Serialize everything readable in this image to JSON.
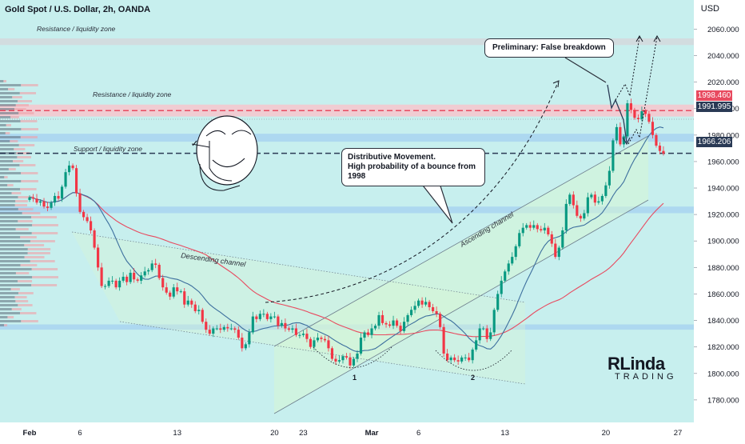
{
  "header": {
    "title": "Gold Spot / U.S. Dollar, 2h, OANDA",
    "currency": "USD"
  },
  "annotations": {
    "resistance_top": "Resistance / liquidity zone",
    "resistance_mid": "Resistance / liquidity zone",
    "support": "Support / liquidity zone",
    "descending_channel": "Descending channel",
    "ascending_channel": "Ascending channel",
    "bottom_1": "1",
    "bottom_2": "2",
    "callout_false_breakdown": "Preliminary: False breakdown",
    "callout_distributive_line1": "Distributive Movement.",
    "callout_distributive_line2": "High probability of a bounce from 1998"
  },
  "logo": {
    "top": "RLinda",
    "bottom": "TRADING"
  },
  "price_tags": [
    {
      "label": "1998.460",
      "color": "#e84a5f"
    },
    {
      "label": "1991.995",
      "color": "#2a3a55"
    },
    {
      "label": "1966.206",
      "color": "#2a3a55"
    }
  ],
  "chart_data": {
    "type": "candlestick",
    "title": "Gold Spot / U.S. Dollar, 2h, OANDA",
    "y_unit": "USD",
    "ylim": [
      1763,
      2082
    ],
    "y_ticks": [
      2060,
      2040,
      2020,
      2000,
      1980,
      1960,
      1940,
      1920,
      1900,
      1880,
      1860,
      1840,
      1820,
      1800,
      1780
    ],
    "y_tick_labels": [
      "2060.000",
      "2040.000",
      "2020.000",
      "2000.000",
      "1980.000",
      "1960.000",
      "1940.000",
      "1920.000",
      "1900.000",
      "1880.000",
      "1860.000",
      "1840.000",
      "1820.000",
      "1800.000",
      "1780.000"
    ],
    "x_ticks": [
      "Feb",
      "6",
      "13",
      "20",
      "23",
      "Mar",
      "6",
      "13",
      "20",
      "27"
    ],
    "x_tick_index": [
      0,
      14,
      41,
      68,
      76,
      95,
      108,
      132,
      160,
      180
    ],
    "candles_count": 185,
    "closes": [
      1933,
      1932,
      1929,
      1930,
      1926,
      1925,
      1929,
      1934,
      1932,
      1941,
      1952,
      1957,
      1955,
      1936,
      1922,
      1918,
      1915,
      1908,
      1895,
      1880,
      1866,
      1866,
      1870,
      1870,
      1865,
      1870,
      1873,
      1869,
      1876,
      1871,
      1870,
      1874,
      1877,
      1878,
      1883,
      1882,
      1872,
      1865,
      1861,
      1858,
      1865,
      1862,
      1862,
      1852,
      1855,
      1852,
      1847,
      1848,
      1839,
      1833,
      1830,
      1834,
      1834,
      1833,
      1835,
      1834,
      1834,
      1833,
      1827,
      1819,
      1822,
      1831,
      1843,
      1841,
      1845,
      1845,
      1841,
      1843,
      1843,
      1836,
      1838,
      1834,
      1833,
      1834,
      1829,
      1829,
      1830,
      1826,
      1820,
      1825,
      1827,
      1826,
      1825,
      1819,
      1811,
      1809,
      1810,
      1813,
      1812,
      1806,
      1811,
      1815,
      1827,
      1831,
      1829,
      1834,
      1836,
      1844,
      1838,
      1837,
      1836,
      1840,
      1836,
      1832,
      1839,
      1844,
      1848,
      1851,
      1855,
      1852,
      1854,
      1850,
      1847,
      1845,
      1835,
      1815,
      1810,
      1812,
      1810,
      1809,
      1812,
      1812,
      1810,
      1818,
      1825,
      1834,
      1834,
      1826,
      1831,
      1848,
      1860,
      1870,
      1877,
      1883,
      1888,
      1896,
      1906,
      1910,
      1912,
      1910,
      1912,
      1909,
      1908,
      1910,
      1905,
      1898,
      1888,
      1895,
      1908,
      1928,
      1935,
      1927,
      1919,
      1917,
      1921,
      1933,
      1935,
      1929,
      1930,
      1934,
      1942,
      1953,
      1976,
      1986,
      1973,
      1979,
      2004,
      1999,
      1993,
      1992,
      1998,
      1996,
      1990,
      1980,
      1972,
      1968,
      1966
    ],
    "value_labels": [
      "1998.460",
      "1991.995",
      "1966.206"
    ],
    "zones": [
      {
        "label": "Resistance / liquidity zone",
        "from": 2048,
        "to": 2053
      },
      {
        "label": "Resistance / liquidity zone",
        "from": 1994,
        "to": 2003
      },
      {
        "label": "",
        "from": 1975,
        "to": 1981
      },
      {
        "label": "",
        "from": 1921,
        "to": 1926
      },
      {
        "label": "",
        "from": 1833,
        "to": 1837
      }
    ],
    "horizontal_levels": [
      {
        "value": 1998.46,
        "style": "dashed",
        "color": "#e84a5f"
      },
      {
        "value": 1991.995,
        "style": "dotted",
        "color": "#9aa0aa"
      },
      {
        "value": 1966.206,
        "style": "dashed",
        "color": "#2a3a55"
      }
    ]
  },
  "colors": {
    "background": "#ffffff",
    "plot_background": "#c7efee",
    "bull": "#089981",
    "bear": "#f23645",
    "ma_fast": "#3d6f9e",
    "ma_slow": "#e84a5f",
    "zone_blue": "#a8d4f0",
    "zone_red": "#f7c6cc",
    "zone_gray": "#d4d8dc",
    "channel_fill": "#d6f5d5"
  }
}
